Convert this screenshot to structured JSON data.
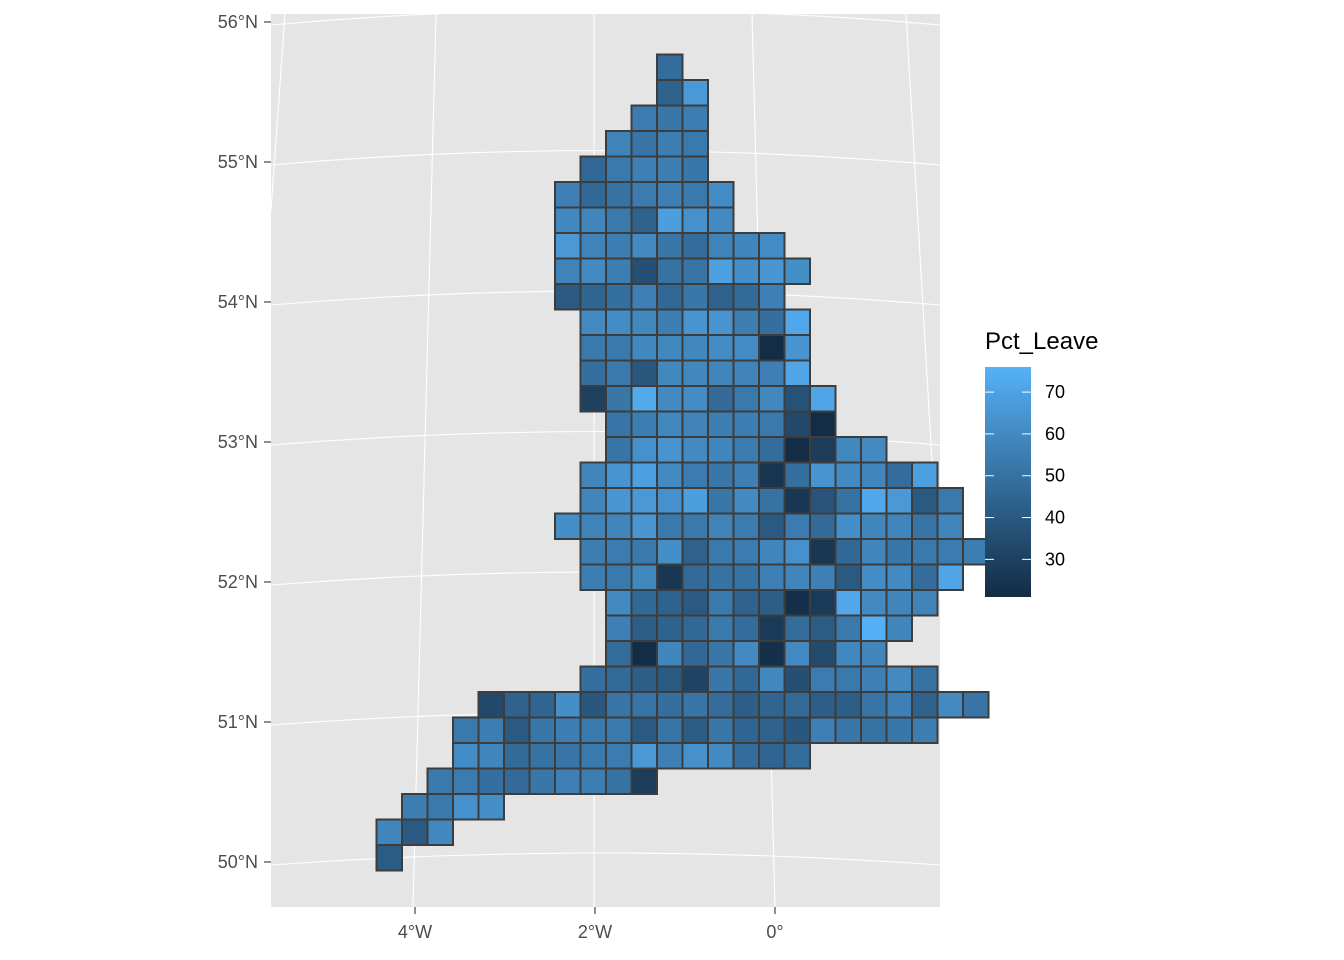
{
  "colors": {
    "panel_background": "#e5e5e5",
    "graticule": "#ffffff",
    "cell_border": "#3d3d3d",
    "scale_low": "#132b43",
    "scale_high": "#56b1f7"
  },
  "chart_data": {
    "type": "heatmap",
    "title": "",
    "xlabel": "",
    "ylabel": "",
    "axis_ticks": {
      "longitude": [
        "4°W",
        "2°W",
        "0°"
      ],
      "latitude": [
        "50°N",
        "51°N",
        "52°N",
        "53°N",
        "54°N",
        "55°N",
        "56°N"
      ]
    },
    "legend": {
      "title": "Pct_Leave",
      "placement": "right",
      "breaks": [
        70,
        60,
        50,
        40,
        30
      ],
      "break_labels": [
        "70",
        "60",
        "50",
        "40",
        "30"
      ],
      "range": [
        21,
        76
      ]
    },
    "grid_origin_col": -5,
    "grid_origin_row": 0,
    "rows": [
      {
        "row": 0,
        "start": 2,
        "values": [
          48
        ]
      },
      {
        "row": 1,
        "start": 2,
        "values": [
          44,
          66
        ]
      },
      {
        "row": 2,
        "start": 1,
        "values": [
          54,
          52,
          55
        ]
      },
      {
        "row": 3,
        "start": 0,
        "values": [
          57,
          51,
          55,
          53
        ]
      },
      {
        "row": 4,
        "start": -1,
        "values": [
          46,
          53,
          56,
          55,
          52
        ]
      },
      {
        "row": 5,
        "start": -2,
        "values": [
          56,
          46,
          50,
          54,
          56,
          53,
          61
        ]
      },
      {
        "row": 6,
        "start": -2,
        "values": [
          59,
          58,
          53,
          44,
          68,
          63,
          60
        ]
      },
      {
        "row": 7,
        "start": -2,
        "values": [
          66,
          57,
          55,
          60,
          52,
          48,
          57,
          58,
          61
        ]
      },
      {
        "row": 8,
        "start": -2,
        "values": [
          57,
          60,
          55,
          36,
          50,
          51,
          69,
          62,
          65,
          62
        ]
      },
      {
        "row": 9,
        "start": -2,
        "values": [
          40,
          45,
          49,
          56,
          46,
          52,
          43,
          47,
          56
        ]
      },
      {
        "row": 10,
        "start": -1,
        "values": [
          60,
          61,
          59,
          55,
          64,
          64,
          55,
          49,
          72
        ]
      },
      {
        "row": 11,
        "start": -1,
        "values": [
          53,
          53,
          59,
          59,
          59,
          61,
          61,
          22,
          64
        ]
      },
      {
        "row": 12,
        "start": -1,
        "values": [
          49,
          53,
          39,
          59,
          59,
          58,
          57,
          56,
          71
        ]
      },
      {
        "row": 13,
        "start": -1,
        "values": [
          30,
          52,
          73,
          60,
          61,
          47,
          53,
          59,
          37,
          71
        ]
      },
      {
        "row": 14,
        "start": 0,
        "values": [
          51,
          55,
          59,
          57,
          55,
          55,
          53,
          33,
          22
        ]
      },
      {
        "row": 15,
        "start": 0,
        "values": [
          51,
          63,
          64,
          60,
          58,
          54,
          48,
          22,
          28,
          59,
          60
        ]
      },
      {
        "row": 16,
        "start": -1,
        "values": [
          58,
          64,
          69,
          60,
          54,
          52,
          56,
          25,
          49,
          64,
          60,
          58,
          48,
          69
        ]
      },
      {
        "row": 17,
        "start": -1,
        "values": [
          58,
          65,
          66,
          63,
          68,
          52,
          60,
          50,
          26,
          38,
          50,
          72,
          66,
          40,
          53
        ]
      },
      {
        "row": 18,
        "start": -2,
        "values": [
          62,
          57,
          58,
          65,
          53,
          53,
          57,
          54,
          40,
          54,
          47,
          62,
          58,
          58,
          51,
          58
        ]
      },
      {
        "row": 19,
        "start": -1,
        "values": [
          55,
          54,
          53,
          62,
          43,
          53,
          54,
          58,
          63,
          26,
          46,
          58,
          52,
          53,
          54,
          55
        ]
      },
      {
        "row": 20,
        "start": -1,
        "values": [
          55,
          53,
          59,
          26,
          47,
          50,
          50,
          56,
          58,
          56,
          40,
          61,
          60,
          48,
          71
        ]
      },
      {
        "row": 21,
        "start": 0,
        "values": [
          60,
          46,
          43,
          40,
          53,
          44,
          42,
          23,
          27,
          72,
          60,
          58,
          57
        ]
      },
      {
        "row": 22,
        "start": 0,
        "values": [
          56,
          42,
          44,
          46,
          53,
          48,
          27,
          48,
          41,
          53,
          75,
          58
        ]
      },
      {
        "row": 23,
        "start": 0,
        "values": [
          48,
          22,
          58,
          46,
          52,
          60,
          23,
          60,
          34,
          59,
          58
        ]
      },
      {
        "row": 24,
        "start": -1,
        "values": [
          49,
          47,
          42,
          40,
          31,
          52,
          46,
          59,
          36,
          54,
          53,
          56,
          60,
          50
        ]
      },
      {
        "row": 25,
        "start": -5,
        "values": [
          33,
          44,
          45,
          62,
          39,
          51,
          51,
          49,
          51,
          48,
          42,
          45,
          47,
          42,
          42,
          51,
          56,
          44,
          60,
          51
        ]
      },
      {
        "row": 26,
        "start": -6,
        "values": [
          53,
          55,
          40,
          52,
          55,
          53,
          53,
          40,
          51,
          41,
          52,
          45,
          43,
          39,
          56,
          52,
          50,
          52,
          55
        ]
      },
      {
        "row": 27,
        "start": -6,
        "values": [
          61,
          58,
          47,
          50,
          51,
          53,
          54,
          66,
          56,
          63,
          60,
          48,
          45,
          48
        ]
      },
      {
        "row": 28,
        "start": -7,
        "values": [
          53,
          54,
          49,
          47,
          52,
          56,
          55,
          50,
          28
        ]
      },
      {
        "row": 29,
        "start": -8,
        "values": [
          55,
          53,
          63,
          62
        ]
      },
      {
        "row": 30,
        "start": -9,
        "values": [
          58,
          40,
          59
        ]
      },
      {
        "row": 31,
        "start": -9,
        "values": [
          41
        ]
      }
    ]
  }
}
